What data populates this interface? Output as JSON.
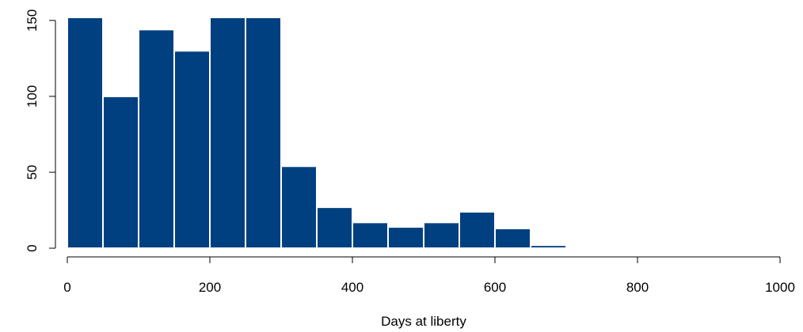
{
  "chart_data": {
    "type": "bar",
    "subtype": "histogram",
    "title": "",
    "xlabel": "Days at liberty",
    "ylabel": "",
    "bin_width": 50,
    "bins": [
      {
        "start": 0,
        "end": 50,
        "count": 152
      },
      {
        "start": 50,
        "end": 100,
        "count": 100
      },
      {
        "start": 100,
        "end": 150,
        "count": 144
      },
      {
        "start": 150,
        "end": 200,
        "count": 130
      },
      {
        "start": 200,
        "end": 250,
        "count": 152
      },
      {
        "start": 250,
        "end": 300,
        "count": 152
      },
      {
        "start": 300,
        "end": 350,
        "count": 54
      },
      {
        "start": 350,
        "end": 400,
        "count": 27
      },
      {
        "start": 400,
        "end": 450,
        "count": 17
      },
      {
        "start": 450,
        "end": 500,
        "count": 14
      },
      {
        "start": 500,
        "end": 550,
        "count": 17
      },
      {
        "start": 550,
        "end": 600,
        "count": 24
      },
      {
        "start": 600,
        "end": 650,
        "count": 13
      },
      {
        "start": 650,
        "end": 700,
        "count": 2
      },
      {
        "start": 700,
        "end": 750,
        "count": 1
      }
    ],
    "xlim": [
      0,
      1000
    ],
    "ylim": [
      0,
      152
    ],
    "xticks": [
      0,
      200,
      400,
      600,
      800,
      1000
    ],
    "yticks": [
      0,
      50,
      100,
      150
    ],
    "grid": false,
    "legend": "none",
    "bar_color": "#004080",
    "bar_edge_color": "#ffffff"
  }
}
